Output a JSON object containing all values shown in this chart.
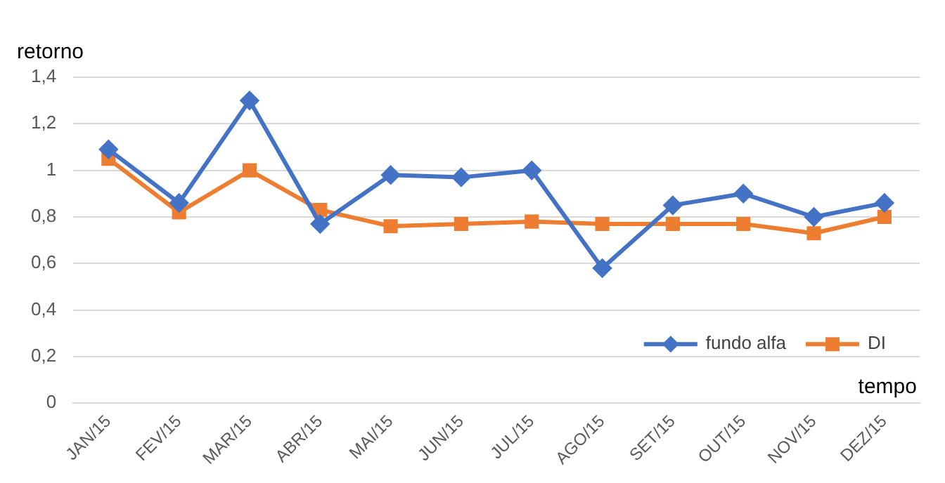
{
  "chart_data": {
    "type": "line",
    "xlabel": "tempo",
    "ylabel": "retorno",
    "categories": [
      "JAN/15",
      "FEV/15",
      "MAR/15",
      "ABR/15",
      "MAI/15",
      "JUN/15",
      "JUL/15",
      "AGO/15",
      "SET/15",
      "OUT/15",
      "NOV/15",
      "DEZ/15"
    ],
    "series": [
      {
        "name": "fundo alfa",
        "color": "#4472c4",
        "marker": "diamond",
        "values": [
          1.09,
          0.86,
          1.3,
          0.77,
          0.98,
          0.97,
          1.0,
          0.58,
          0.85,
          0.9,
          0.8,
          0.86
        ]
      },
      {
        "name": "DI",
        "color": "#ed7d31",
        "marker": "square",
        "values": [
          1.05,
          0.82,
          1.0,
          0.83,
          0.76,
          0.77,
          0.78,
          0.77,
          0.77,
          0.77,
          0.73,
          0.8
        ]
      }
    ],
    "ylim": [
      0,
      1.4
    ],
    "yticks": [
      {
        "value": 0,
        "label": "0"
      },
      {
        "value": 0.2,
        "label": "0,2"
      },
      {
        "value": 0.4,
        "label": "0,4"
      },
      {
        "value": 0.6,
        "label": "0,6"
      },
      {
        "value": 0.8,
        "label": "0,8"
      },
      {
        "value": 1,
        "label": "1"
      },
      {
        "value": 1.2,
        "label": "1,2"
      },
      {
        "value": 1.4,
        "label": "1,4"
      }
    ],
    "grid": "y",
    "legend": "bottom right",
    "line_style": "solid"
  }
}
